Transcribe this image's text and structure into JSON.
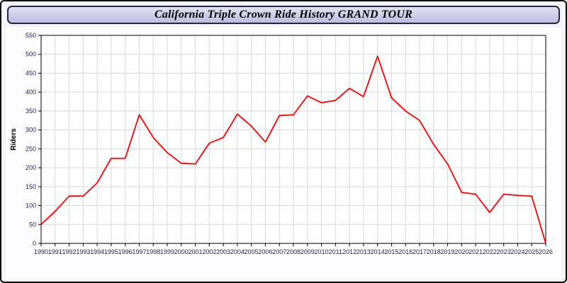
{
  "header": {
    "title": "California Triple Crown Ride History GRAND TOUR"
  },
  "chart_data": {
    "type": "line",
    "title": "California Triple Crown Ride History GRAND TOUR",
    "xlabel": "",
    "ylabel": "Riders",
    "ylim": [
      0,
      550
    ],
    "ytick_step": 50,
    "grid": true,
    "line_color": "#ff0000",
    "grid_color": "#d9d9d9",
    "axis_color": "#000000",
    "tick_label_color": "#26264d",
    "categories": [
      1990,
      1991,
      1992,
      1993,
      1994,
      1995,
      1996,
      1997,
      1998,
      1999,
      2000,
      2001,
      2002,
      2003,
      2004,
      2005,
      2006,
      2007,
      2008,
      2009,
      2010,
      2011,
      2012,
      2013,
      2014,
      2015,
      2016,
      2017,
      2018,
      2019,
      2020,
      2021,
      2022,
      2023,
      2024,
      2025,
      2026
    ],
    "values": [
      50,
      85,
      125,
      125,
      160,
      225,
      225,
      340,
      280,
      240,
      212,
      210,
      265,
      280,
      342,
      310,
      268,
      338,
      340,
      390,
      372,
      378,
      410,
      388,
      495,
      385,
      350,
      325,
      262,
      210,
      135,
      130,
      82,
      130,
      127,
      125,
      0
    ]
  }
}
